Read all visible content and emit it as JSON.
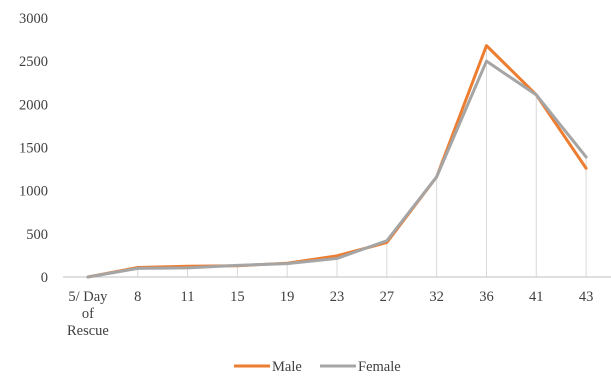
{
  "chart_data": {
    "type": "line",
    "title": "",
    "xlabel": "",
    "ylabel": "",
    "categories": [
      "5/ Day of Rescue",
      "8",
      "11",
      "15",
      "19",
      "23",
      "27",
      "32",
      "36",
      "41",
      "43"
    ],
    "category_label_lines": [
      [
        "5/ Day",
        "of",
        "Rescue"
      ],
      [
        "8"
      ],
      [
        "11"
      ],
      [
        "15"
      ],
      [
        "19"
      ],
      [
        "23"
      ],
      [
        "27"
      ],
      [
        "32"
      ],
      [
        "36"
      ],
      [
        "41"
      ],
      [
        "43"
      ]
    ],
    "ylim": [
      0,
      3000
    ],
    "yticks": [
      0,
      500,
      1000,
      1500,
      2000,
      2500,
      3000
    ],
    "grid": false,
    "vertical_drop_lines": true,
    "legend_position": "bottom",
    "series": [
      {
        "name": "Male",
        "color": "#ED7D31",
        "values": [
          0,
          110,
          125,
          130,
          160,
          245,
          400,
          1160,
          2680,
          2110,
          1260
        ]
      },
      {
        "name": "Female",
        "color": "#A5A5A5",
        "values": [
          0,
          100,
          105,
          135,
          155,
          215,
          420,
          1160,
          2500,
          2110,
          1390
        ]
      }
    ]
  }
}
